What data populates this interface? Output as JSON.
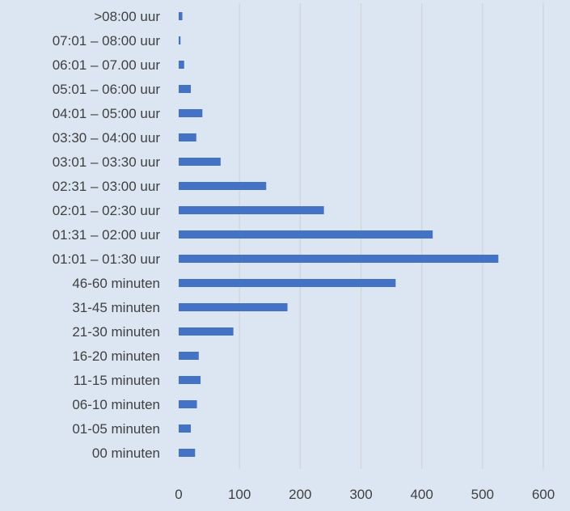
{
  "chart_data": {
    "type": "bar",
    "orientation": "horizontal",
    "categories": [
      ">08:00 uur",
      "07:01 – 08:00 uur",
      "06:01 – 07.00 uur",
      "05:01 – 06:00 uur",
      "04:01 – 05:00 uur",
      "03:30 – 04:00 uur",
      "03:01 – 03:30 uur",
      "02:31 – 03:00 uur",
      "02:01 – 02:30 uur",
      "01:31 – 02:00 uur",
      "01:01 – 01:30 uur",
      "46-60 minuten",
      "31-45 minuten",
      "21-30 minuten",
      "16-20 minuten",
      "11-15 minuten",
      "06-10 minuten",
      "01-05 minuten",
      "00 minuten"
    ],
    "values": [
      6,
      3,
      9,
      20,
      39,
      29,
      69,
      144,
      239,
      418,
      526,
      357,
      179,
      90,
      33,
      36,
      30,
      20,
      27
    ],
    "xlim": [
      0,
      600
    ],
    "xticks": [
      "0",
      "100",
      "200",
      "300",
      "400",
      "500",
      "600"
    ],
    "grid": true,
    "title": "",
    "xlabel": "",
    "ylabel": "",
    "colors": {
      "bar": "#4472c4",
      "background": "#dce6f2",
      "grid": "#d0d3d8",
      "text": "#404040"
    }
  }
}
